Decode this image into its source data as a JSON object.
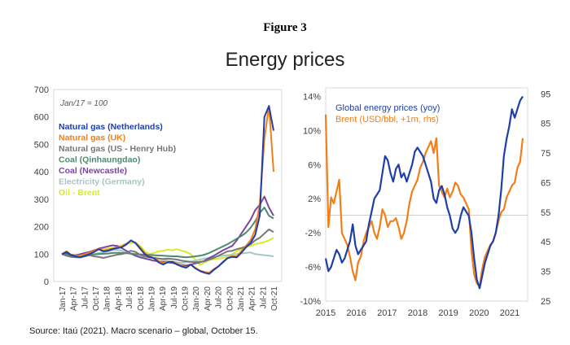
{
  "figure_label": "Figure 3",
  "title": "Energy prices",
  "source": "Source: Itaú (2021). Macro scenario – global, October 15.",
  "chart_data": [
    {
      "type": "line",
      "annotation": "Jan/17 = 100",
      "ylim": [
        0,
        700
      ],
      "y_ticks": [
        "0",
        "100",
        "200",
        "300",
        "400",
        "500",
        "600",
        "700"
      ],
      "x_tick_labels": [
        "Jan-17",
        "Apr-17",
        "Jul-17",
        "Oct-17",
        "Jan-18",
        "Apr-18",
        "Jul-18",
        "Oct-18",
        "Jan-19",
        "Apr-19",
        "Jul-19",
        "Oct-19",
        "Jan-20",
        "Apr-20",
        "Jul-20",
        "Oct-20",
        "Jan-21",
        "Apr-21",
        "Jul-21",
        "Oct-21"
      ],
      "grid": false,
      "legend_position": "top-left",
      "series": [
        {
          "name": "Natural gas (Netherlands)",
          "color": "#1f3fa6",
          "values": [
            100,
            108,
            96,
            92,
            88,
            94,
            100,
            108,
            118,
            110,
            112,
            118,
            122,
            125,
            135,
            150,
            140,
            120,
            100,
            90,
            85,
            70,
            62,
            70,
            72,
            62,
            55,
            50,
            62,
            48,
            38,
            32,
            28,
            42,
            55,
            70,
            85,
            90,
            88,
            105,
            125,
            140,
            170,
            240,
            600,
            640,
            550
          ]
        },
        {
          "name": "Natural gas (UK)",
          "color": "#f07f1a",
          "values": [
            100,
            110,
            98,
            95,
            95,
            100,
            105,
            112,
            120,
            112,
            116,
            120,
            124,
            128,
            138,
            148,
            142,
            124,
            104,
            92,
            86,
            75,
            68,
            72,
            72,
            66,
            58,
            52,
            62,
            50,
            40,
            35,
            32,
            45,
            56,
            72,
            86,
            92,
            92,
            110,
            130,
            150,
            190,
            280,
            520,
            640,
            400
          ]
        },
        {
          "name": "Natural gas (US - Henry Hub)",
          "color": "#777777",
          "values": [
            100,
            94,
            90,
            88,
            88,
            92,
            96,
            92,
            90,
            86,
            90,
            94,
            98,
            100,
            104,
            112,
            108,
            98,
            92,
            88,
            86,
            84,
            82,
            84,
            82,
            80,
            76,
            74,
            72,
            70,
            72,
            74,
            80,
            86,
            94,
            102,
            110,
            112,
            118,
            122,
            128,
            136,
            150,
            160,
            175,
            190,
            180
          ]
        },
        {
          "name": "Coal (Qinhaungdao)",
          "color": "#4f8a6e",
          "values": [
            100,
            98,
            96,
            95,
            96,
            97,
            98,
            99,
            100,
            101,
            102,
            104,
            105,
            104,
            103,
            102,
            100,
            99,
            98,
            97,
            96,
            95,
            94,
            93,
            92,
            92,
            90,
            88,
            90,
            92,
            94,
            98,
            104,
            112,
            120,
            128,
            136,
            146,
            156,
            166,
            178,
            196,
            220,
            250,
            270,
            240,
            230
          ]
        },
        {
          "name": "Coal (Newcastle)",
          "color": "#7c46a0",
          "values": [
            100,
            102,
            98,
            96,
            100,
            104,
            108,
            114,
            120,
            124,
            128,
            132,
            130,
            122,
            112,
            102,
            94,
            88,
            84,
            80,
            76,
            74,
            72,
            70,
            68,
            64,
            60,
            58,
            62,
            66,
            70,
            76,
            86,
            94,
            104,
            114,
            122,
            130,
            150,
            175,
            200,
            225,
            260,
            280,
            310,
            270,
            240
          ]
        },
        {
          "name": "Electricity (Germany)",
          "color": "#a6c5c8",
          "values": [
            100,
            104,
            96,
            92,
            94,
            96,
            98,
            100,
            104,
            106,
            110,
            114,
            116,
            112,
            106,
            100,
            96,
            92,
            90,
            88,
            86,
            84,
            80,
            76,
            72,
            70,
            68,
            70,
            72,
            76,
            80,
            84,
            86,
            90,
            92,
            94,
            96,
            98,
            100,
            102,
            104,
            106,
            100,
            98,
            96,
            94,
            92
          ]
        },
        {
          "name": "Oil - Brent",
          "color": "#d6ec2a",
          "values": [
            100,
            98,
            96,
            92,
            94,
            98,
            104,
            110,
            116,
            118,
            120,
            122,
            126,
            132,
            138,
            140,
            142,
            130,
            110,
            100,
            104,
            110,
            112,
            116,
            114,
            118,
            112,
            108,
            100,
            80,
            60,
            70,
            78,
            82,
            84,
            86,
            90,
            100,
            110,
            118,
            126,
            130,
            136,
            140,
            144,
            150,
            160
          ]
        }
      ]
    },
    {
      "type": "line",
      "y_left_ticks": [
        "-10%",
        "-6%",
        "-2%",
        "2%",
        "6%",
        "10%",
        "14%"
      ],
      "y_right_ticks": [
        "25",
        "35",
        "45",
        "55",
        "65",
        "75",
        "85",
        "95"
      ],
      "x_tick_labels": [
        "2015",
        "2016",
        "2017",
        "2018",
        "2019",
        "2020",
        "2021"
      ],
      "ylim_left": [
        -10,
        15
      ],
      "ylim_right": [
        25,
        97
      ],
      "reference_line": 54,
      "grid": false,
      "legend_position": "top-left",
      "series": [
        {
          "name": "Global energy prices (yoy)",
          "color": "#1f3fa6",
          "axis": "left",
          "values": [
            -5,
            -6.5,
            -6,
            -5,
            -4,
            -4.5,
            -5.5,
            -5,
            -4,
            -3,
            -1,
            -3.5,
            -4.5,
            -4,
            -3.5,
            -3,
            -1,
            0.5,
            2,
            2.5,
            3,
            5,
            7,
            6.5,
            5,
            4,
            5.5,
            6,
            4.5,
            5,
            4,
            5,
            6,
            7.5,
            8,
            7.5,
            7,
            6,
            5,
            4,
            2,
            1.5,
            3,
            3.5,
            2.5,
            1,
            0,
            -1.5,
            -2,
            -1.5,
            0,
            1,
            0.5,
            0,
            -2,
            -5,
            -7.5,
            -8.5,
            -7,
            -5.5,
            -4.5,
            -3.5,
            -3,
            -2,
            0,
            3,
            7,
            9,
            10.5,
            12.5,
            11.5,
            12.5,
            13.5,
            14
          ]
        },
        {
          "name": "Brent (USD/bbl, +1m, rhs)",
          "color": "#f07f1a",
          "axis": "right",
          "values": [
            88,
            50,
            60,
            58,
            62,
            66,
            48,
            46,
            44,
            40,
            35,
            32,
            38,
            40,
            45,
            48,
            50,
            52,
            48,
            46,
            50,
            56,
            54,
            50,
            52,
            52,
            53,
            50,
            46,
            48,
            52,
            58,
            62,
            64,
            66,
            70,
            72,
            75,
            77,
            79,
            75,
            80,
            64,
            62,
            60,
            63,
            60,
            62,
            65,
            64,
            61,
            60,
            58,
            56,
            42,
            34,
            31,
            30,
            36,
            40,
            42,
            44,
            45,
            48,
            52,
            55,
            56,
            60,
            62,
            64,
            65,
            70,
            72,
            80
          ]
        }
      ]
    }
  ]
}
